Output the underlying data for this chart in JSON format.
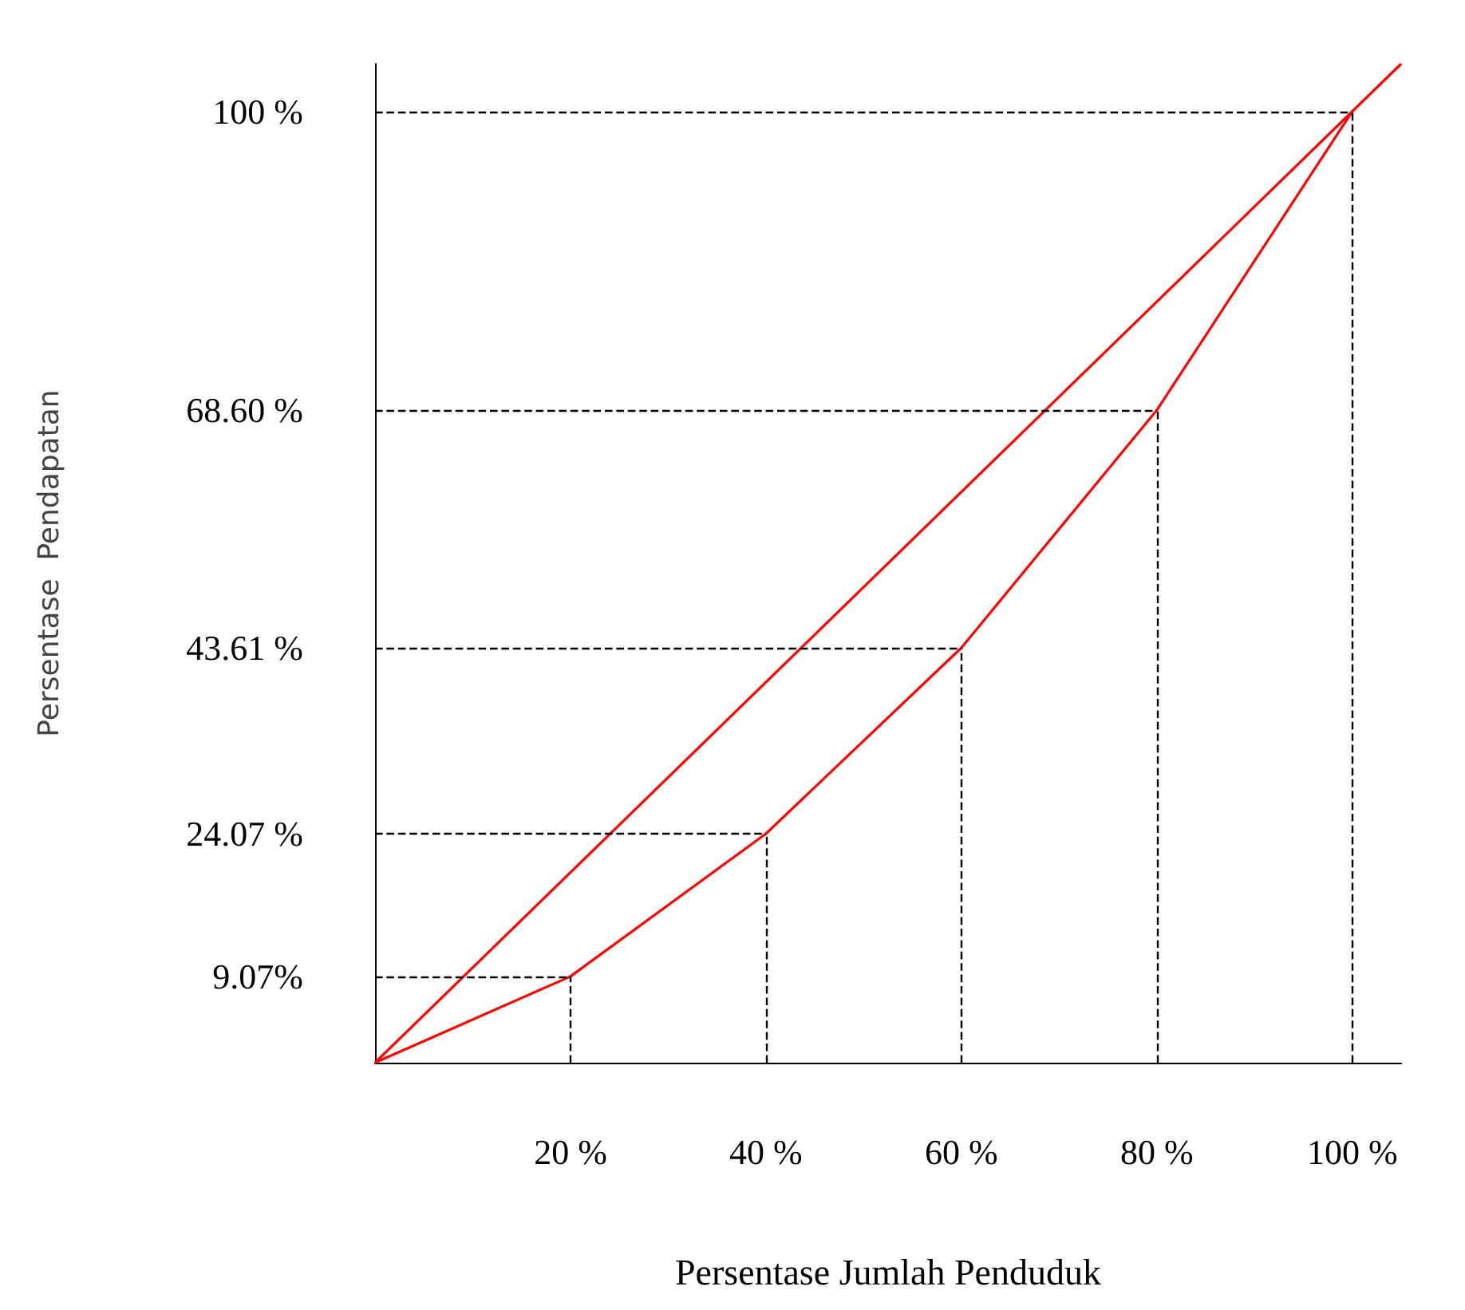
{
  "chart_data": {
    "type": "line",
    "xlabel": "Persentase Jumlah Penduduk",
    "ylabel": "Persentase  Pendapatan",
    "series": [
      {
        "color": "#ff0000",
        "x": [
          0,
          20,
          40,
          60,
          80,
          100
        ],
        "values": [
          0,
          9.07,
          24.07,
          43.61,
          68.6,
          100
        ]
      },
      {
        "color": "#ff0000",
        "x": [
          0,
          105
        ],
        "values": [
          0,
          105
        ]
      }
    ],
    "xlim": [
      0,
      105
    ],
    "ylim": [
      0,
      105
    ],
    "xticks": [
      {
        "value": 20,
        "label": "20 %"
      },
      {
        "value": 40,
        "label": "40 %"
      },
      {
        "value": 60,
        "label": "60 %"
      },
      {
        "value": 80,
        "label": "80 %"
      },
      {
        "value": 100,
        "label": "100 %"
      }
    ],
    "yticks": [
      {
        "value": 9.07,
        "label": "9.07%"
      },
      {
        "value": 24.07,
        "label": "24.07 %"
      },
      {
        "value": 43.61,
        "label": "43.61 %"
      },
      {
        "value": 68.6,
        "label": "68.60 %"
      },
      {
        "value": 100,
        "label": "100 %"
      }
    ],
    "ref_lines": [
      {
        "axis": "x",
        "value": 20,
        "color": "#000000",
        "line_style": "dashed"
      },
      {
        "axis": "x",
        "value": 40,
        "color": "#000000",
        "line_style": "dashed"
      },
      {
        "axis": "x",
        "value": 60,
        "color": "#000000",
        "line_style": "dashed"
      },
      {
        "axis": "x",
        "value": 80,
        "color": "#000000",
        "line_style": "dashed"
      },
      {
        "axis": "x",
        "value": 100,
        "color": "#000000",
        "line_style": "dashed"
      },
      {
        "axis": "y",
        "value": 9.07,
        "color": "#000000",
        "line_style": "dashed"
      },
      {
        "axis": "y",
        "value": 24.07,
        "color": "#000000",
        "line_style": "dashed"
      },
      {
        "axis": "y",
        "value": 43.61,
        "color": "#000000",
        "line_style": "dashed"
      },
      {
        "axis": "y",
        "value": 68.6,
        "color": "#000000",
        "line_style": "dashed"
      },
      {
        "axis": "y",
        "value": 100,
        "color": "#000000",
        "line_style": "dashed"
      }
    ],
    "grid": false,
    "marker": "none",
    "line_style": "solid"
  }
}
